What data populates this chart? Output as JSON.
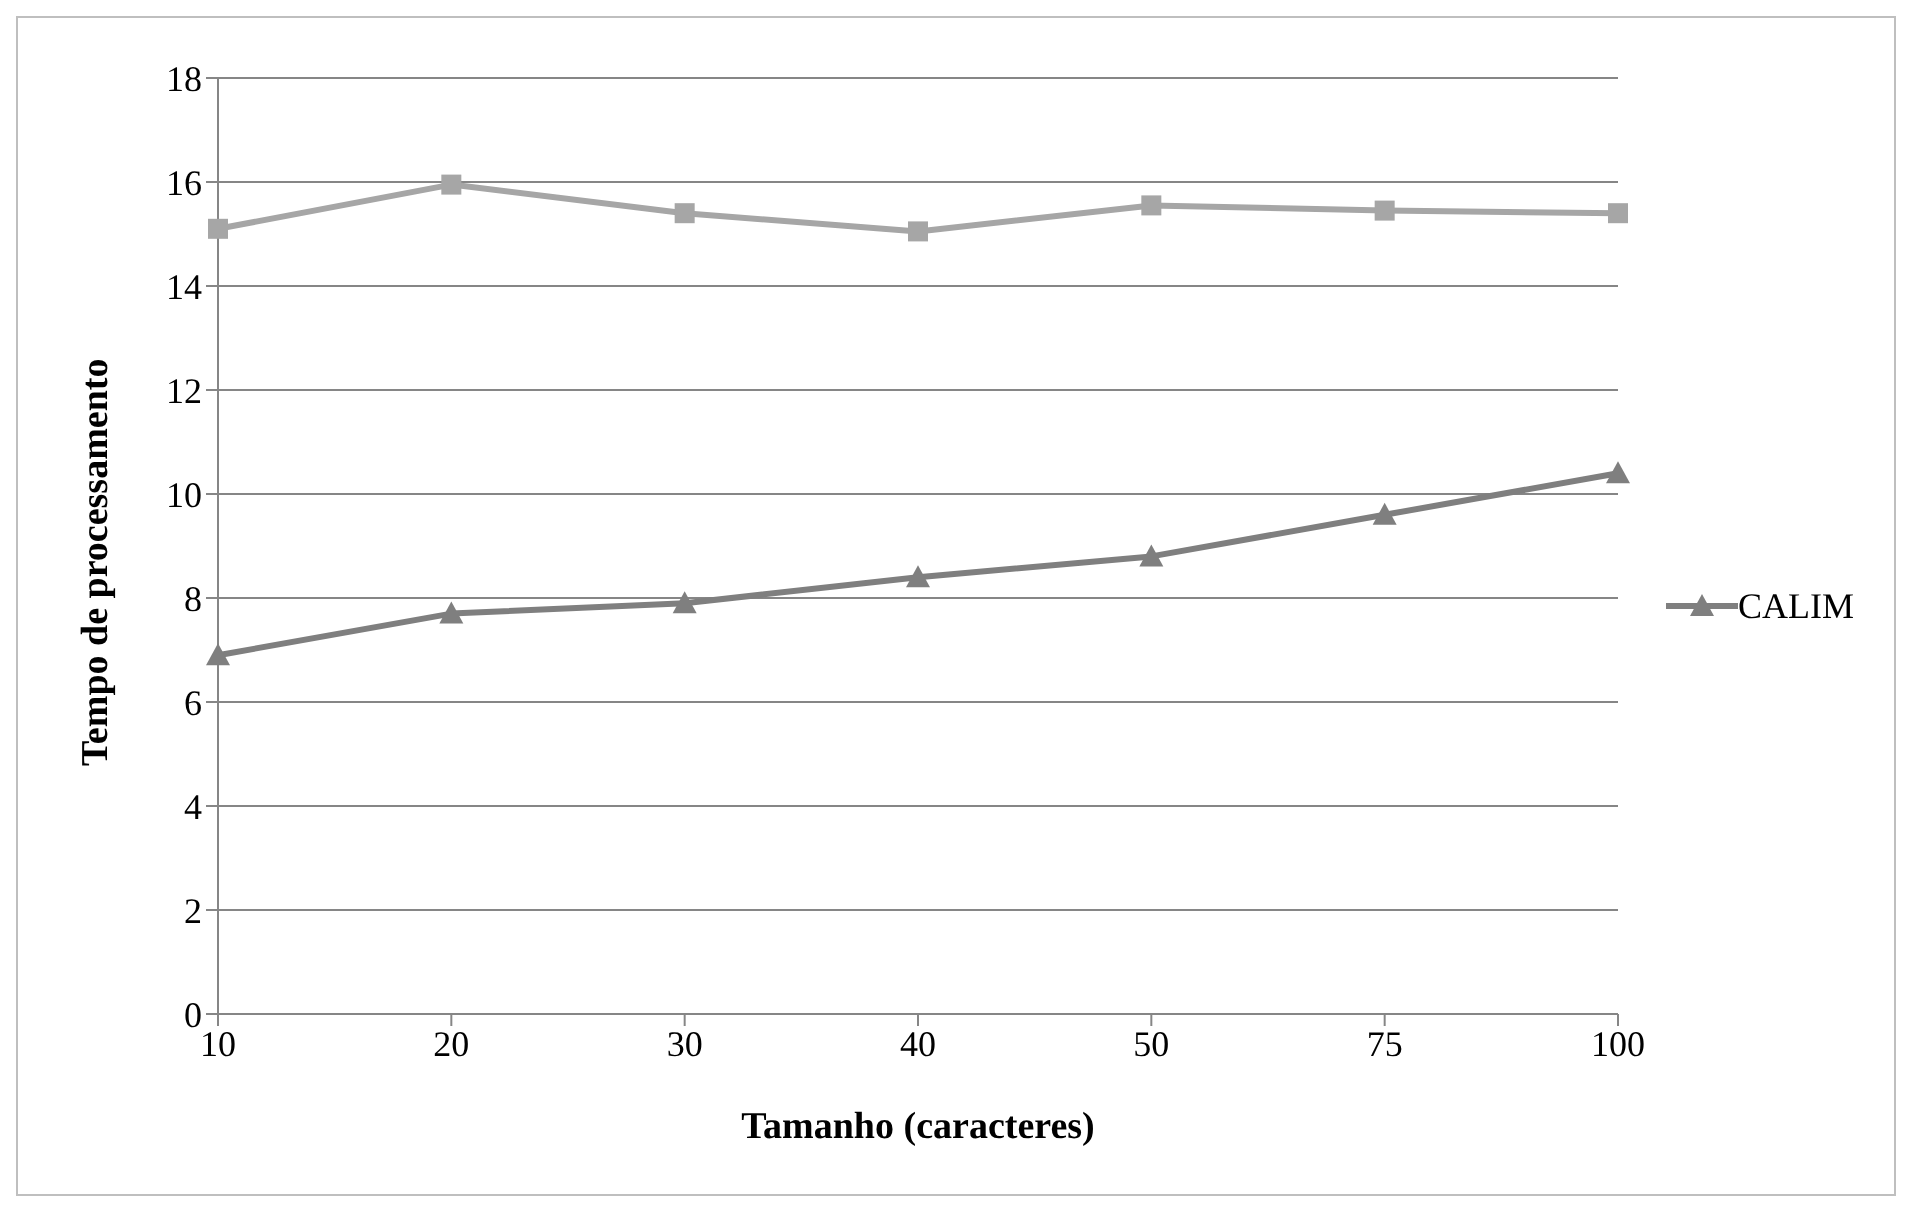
{
  "chart_data": {
    "type": "line",
    "xlabel": "Tamanho (caracteres)",
    "ylabel": "Tempo de processamento",
    "categories": [
      "10",
      "20",
      "30",
      "40",
      "50",
      "75",
      "100"
    ],
    "series": [
      {
        "color": "#a6a6a6",
        "marker": "square",
        "values": [
          15.1,
          15.95,
          15.4,
          15.05,
          15.55,
          15.45,
          15.4
        ]
      },
      {
        "name": "CALIM",
        "color": "#7f7f7f",
        "marker": "triangle",
        "values": [
          6.9,
          7.7,
          7.9,
          8.4,
          8.8,
          9.6,
          10.4
        ]
      }
    ],
    "ylim": [
      0,
      18
    ],
    "yticks": [
      0,
      2,
      4,
      6,
      8,
      10,
      12,
      14,
      16,
      18
    ],
    "grid": "y",
    "legend": "right"
  }
}
